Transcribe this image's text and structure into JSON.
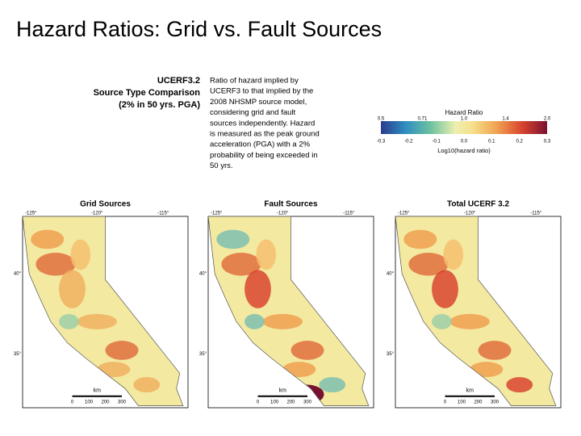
{
  "title": "Hazard Ratios: Grid vs. Fault Sources",
  "figure": {
    "header": [
      "UCERF3.2",
      "Source Type Comparison",
      "(2% in 50 yrs. PGA)"
    ],
    "description": [
      "Ratio of hazard implied by",
      "UCERF3 to that implied by the",
      "2008 NHSMP source model,",
      "considering grid and fault",
      "sources independently. Hazard",
      "is measured as the peak ground",
      "acceleration (PGA) with a 2%",
      "probability of being exceeded in",
      "50 yrs."
    ],
    "colorbar": {
      "title": "Hazard Ratio",
      "top_ticks": [
        "0.5",
        "0.71",
        "1.0",
        "1.4",
        "2.0"
      ],
      "bottom_ticks": [
        "-0.3",
        "-0.2",
        "-0.1",
        "0.0",
        "0.1",
        "0.2",
        "0.3"
      ],
      "label": "Log10(hazard ratio)"
    },
    "panels": [
      {
        "title": "Grid Sources",
        "lon_labels": [
          "-125°",
          "-120°",
          "-115°"
        ],
        "lat_labels": [
          "40°",
          "35°"
        ],
        "scale_unit": "km",
        "scale_ticks": [
          "0",
          "100",
          "200",
          "300"
        ]
      },
      {
        "title": "Fault Sources",
        "lon_labels": [
          "-125°",
          "-120°",
          "-115°"
        ],
        "lat_labels": [
          "40°",
          "35°"
        ],
        "scale_unit": "km",
        "scale_ticks": [
          "0",
          "100",
          "200",
          "300"
        ]
      },
      {
        "title": "Total UCERF 3.2",
        "lon_labels": [
          "-125°",
          "-120°",
          "-115°"
        ],
        "lat_labels": [
          "40°",
          "35°"
        ],
        "scale_unit": "km",
        "scale_ticks": [
          "0",
          "100",
          "200",
          "300"
        ]
      }
    ]
  }
}
